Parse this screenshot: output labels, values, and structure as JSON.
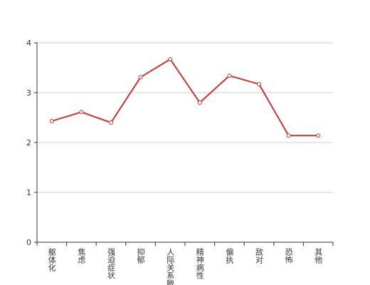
{
  "chart_data": {
    "type": "line",
    "categories": [
      "躯体化",
      "焦虑",
      "强迫症状",
      "抑郁",
      "人际关系敏感",
      "精神病性",
      "偏执",
      "敌对",
      "恐怖",
      "其他"
    ],
    "values": [
      2.43,
      2.61,
      2.4,
      3.31,
      3.67,
      2.8,
      3.34,
      3.17,
      2.14,
      2.14
    ],
    "color": "#c23531",
    "ylim": [
      0,
      4
    ],
    "yticks": [
      0,
      1,
      2,
      3,
      4
    ],
    "grid": true
  }
}
